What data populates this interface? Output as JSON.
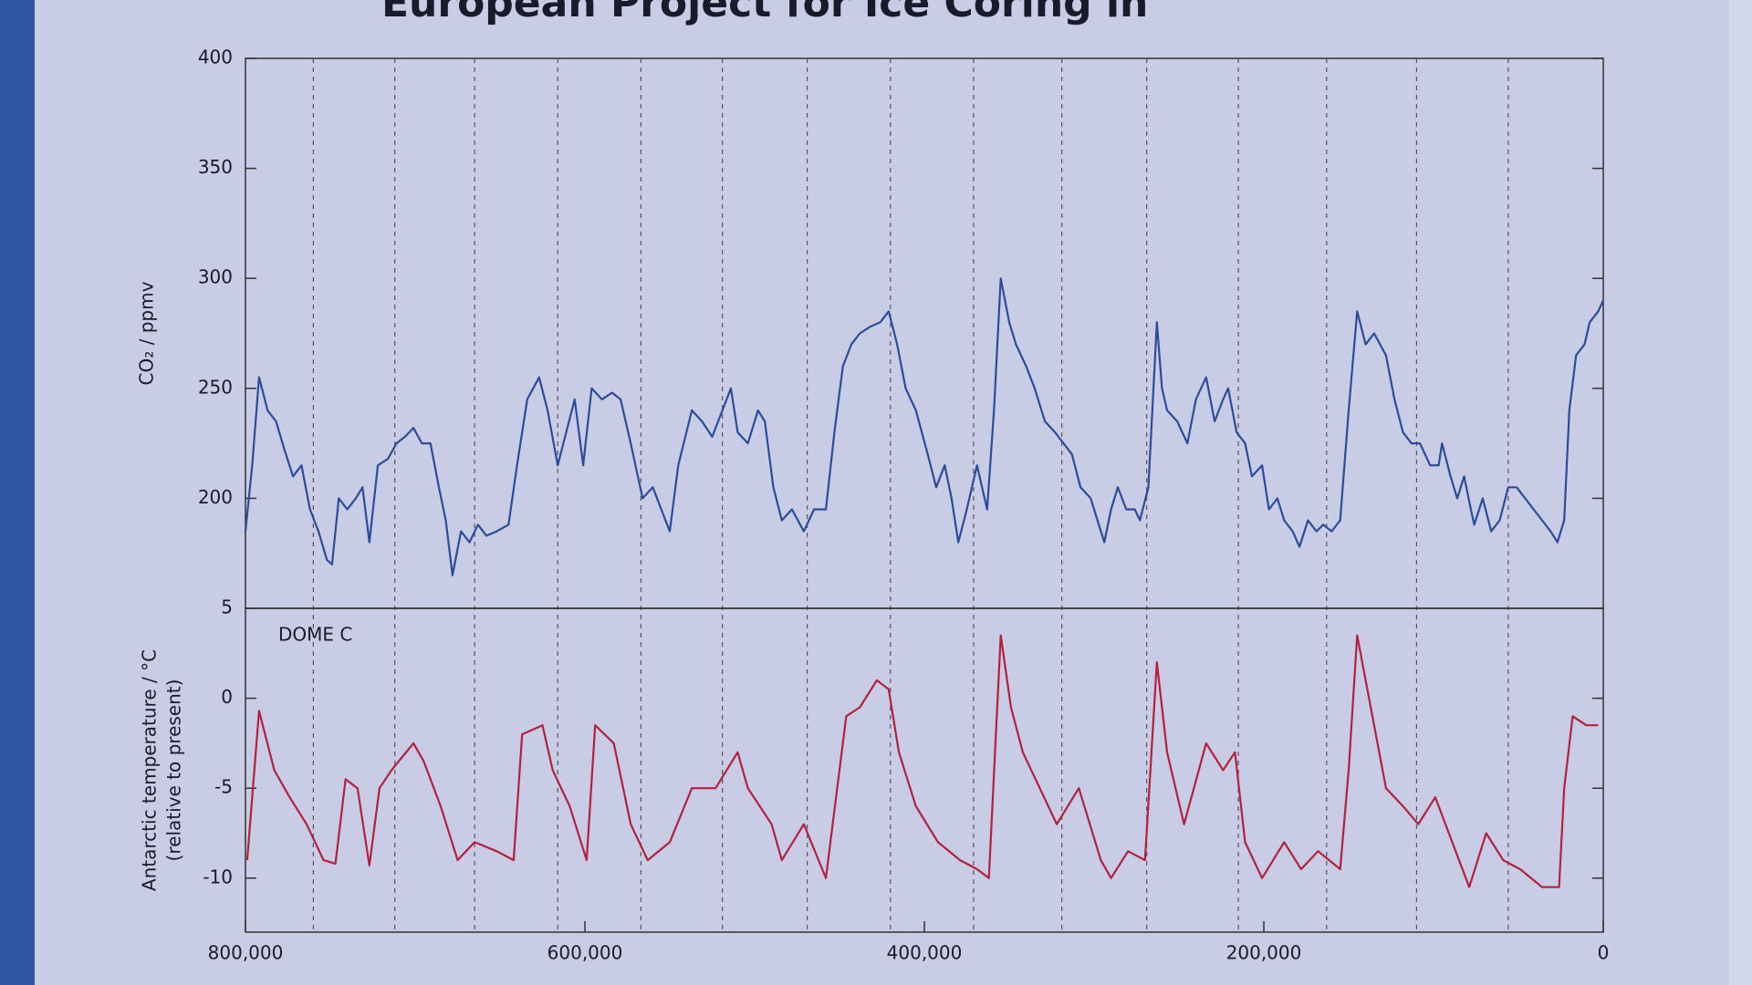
{
  "chart_data": [
    {
      "type": "line",
      "title": "European Project for Ice Coring in",
      "ylabel": "CO₂ / ppmv",
      "xlim": [
        800000,
        0
      ],
      "ylim": [
        150,
        400
      ],
      "yticks": [
        200,
        250,
        300,
        350,
        400
      ],
      "vlines": [
        760000,
        712000,
        665000,
        616000,
        567000,
        519000,
        469000,
        420000,
        371000,
        319000,
        269000,
        215000,
        163000,
        110000,
        56000
      ],
      "series": [
        {
          "name": "CO2",
          "color": "#2b4c9b",
          "x": [
            800000,
            796000,
            792000,
            787000,
            782000,
            777000,
            772000,
            767000,
            762000,
            757000,
            752000,
            749000,
            745000,
            740000,
            735000,
            731000,
            727000,
            722000,
            716000,
            711000,
            706000,
            701000,
            696000,
            691000,
            686000,
            682000,
            678000,
            673000,
            668000,
            663000,
            658000,
            652000,
            645000,
            640000,
            634000,
            627000,
            622000,
            616000,
            611000,
            606000,
            601000,
            596000,
            590000,
            584000,
            579000,
            573000,
            566000,
            560000,
            555000,
            550000,
            545000,
            537000,
            531000,
            525000,
            519000,
            514000,
            510000,
            504000,
            498000,
            494000,
            489000,
            484000,
            478000,
            471000,
            465000,
            458000,
            453000,
            448000,
            443000,
            438000,
            432000,
            426000,
            421000,
            416000,
            411000,
            405000,
            398000,
            393000,
            388000,
            384000,
            380000,
            375000,
            369000,
            363000,
            359000,
            355000,
            350000,
            346000,
            340000,
            335000,
            329000,
            323000,
            318000,
            313000,
            308000,
            302000,
            298000,
            294000,
            290000,
            286000,
            281000,
            276000,
            273000,
            268000,
            263000,
            260000,
            257000,
            251000,
            245000,
            240000,
            234000,
            229000,
            224000,
            221000,
            216000,
            211000,
            207000,
            201000,
            197000,
            192000,
            188000,
            183000,
            179000,
            174000,
            169000,
            165000,
            160000,
            155000,
            150000,
            145000,
            140000,
            135000,
            128000,
            123000,
            118000,
            113000,
            108000,
            102000,
            97000,
            95000,
            90000,
            86000,
            82000,
            78000,
            76000,
            71000,
            66000,
            61000,
            56000,
            51000,
            46000,
            41000,
            36000,
            31000,
            27000,
            23000,
            20000,
            16000,
            11000,
            8000,
            3000,
            0
          ],
          "values": [
            185,
            215,
            255,
            240,
            235,
            222,
            210,
            215,
            195,
            185,
            172,
            170,
            200,
            195,
            200,
            205,
            180,
            215,
            218,
            225,
            228,
            232,
            225,
            225,
            205,
            190,
            165,
            185,
            180,
            188,
            183,
            185,
            188,
            215,
            245,
            255,
            240,
            215,
            230,
            245,
            215,
            250,
            245,
            248,
            245,
            225,
            200,
            205,
            195,
            185,
            215,
            240,
            235,
            228,
            240,
            250,
            230,
            225,
            240,
            235,
            205,
            190,
            195,
            185,
            195,
            195,
            230,
            260,
            270,
            275,
            278,
            280,
            285,
            270,
            250,
            240,
            220,
            205,
            215,
            200,
            180,
            195,
            215,
            195,
            240,
            300,
            280,
            270,
            260,
            250,
            235,
            230,
            225,
            220,
            205,
            200,
            190,
            180,
            195,
            205,
            195,
            195,
            190,
            205,
            280,
            250,
            240,
            235,
            225,
            245,
            255,
            235,
            245,
            250,
            230,
            225,
            210,
            215,
            195,
            200,
            190,
            185,
            178,
            190,
            185,
            188,
            185,
            190,
            240,
            285,
            270,
            275,
            265,
            245,
            230,
            225,
            225,
            215,
            215,
            225,
            210,
            200,
            210,
            195,
            188,
            200,
            185,
            190,
            205,
            205,
            200,
            195,
            190,
            185,
            180,
            190,
            240,
            265,
            270,
            280,
            285,
            290
          ]
        }
      ]
    },
    {
      "type": "line",
      "annotation": "DOME C",
      "ylabel": "Antarctic temperature / °C",
      "ylabel2": "(relative to present)",
      "xlim": [
        800000,
        0
      ],
      "xticks": [
        {
          "value": 800000,
          "label": "800,000"
        },
        {
          "value": 600000,
          "label": "600,000"
        },
        {
          "value": 400000,
          "label": "400,000"
        },
        {
          "value": 200000,
          "label": "200,000"
        },
        0
      ],
      "ylim": [
        -13,
        5
      ],
      "yticks": [
        5,
        0,
        -5,
        -10
      ],
      "series": [
        {
          "name": "Temperature",
          "color": "#b3213d",
          "x": [
            799000,
            792000,
            783000,
            774000,
            764000,
            754000,
            747000,
            741000,
            734000,
            727000,
            721000,
            714000,
            701000,
            695000,
            685000,
            675000,
            665000,
            652000,
            642000,
            637000,
            625000,
            619000,
            609000,
            599000,
            594000,
            583000,
            573000,
            563000,
            550000,
            537000,
            523000,
            510000,
            504000,
            490000,
            484000,
            471000,
            458000,
            446000,
            438000,
            428000,
            421000,
            415000,
            405000,
            392000,
            379000,
            369000,
            362000,
            355000,
            349000,
            342000,
            332000,
            322000,
            309000,
            296000,
            290000,
            280000,
            270000,
            263000,
            257000,
            247000,
            234000,
            224000,
            217000,
            211000,
            201000,
            188000,
            178000,
            168000,
            155000,
            150000,
            145000,
            138000,
            128000,
            118000,
            109000,
            99000,
            89000,
            79000,
            69000,
            59000,
            49000,
            36000,
            26000,
            23000,
            18000,
            10000,
            3000
          ],
          "values": [
            -9,
            -0.7,
            -4,
            -5.5,
            -7,
            -9,
            -9.2,
            -4.5,
            -5,
            -9.3,
            -5,
            -4,
            -2.5,
            -3.5,
            -6,
            -9,
            -8,
            -8.5,
            -9,
            -2,
            -1.5,
            -4,
            -6,
            -9,
            -1.5,
            -2.5,
            -7,
            -9,
            -8,
            -5,
            -5,
            -3,
            -5,
            -7,
            -9,
            -7,
            -10,
            -1,
            -0.5,
            1,
            0.5,
            -3,
            -6,
            -8,
            -9,
            -9.5,
            -10,
            3.5,
            -0.5,
            -3,
            -5,
            -7,
            -5,
            -9,
            -10,
            -8.5,
            -9,
            2,
            -3,
            -7,
            -2.5,
            -4,
            -3,
            -8,
            -10,
            -8,
            -9.5,
            -8.5,
            -9.5,
            -4,
            3.5,
            0,
            -5,
            -6,
            -7,
            -5.5,
            -8,
            -10.5,
            -7.5,
            -9,
            -9.5,
            -10.5,
            -10.5,
            -5,
            -1,
            -1.5,
            -1.5
          ]
        }
      ]
    }
  ]
}
